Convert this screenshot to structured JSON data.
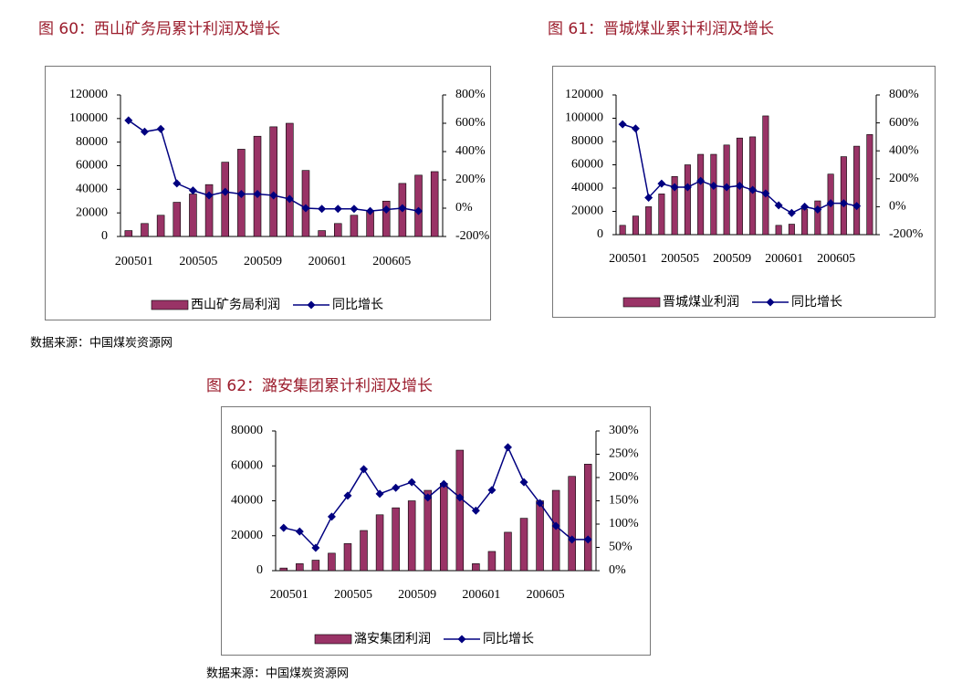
{
  "chart_data": [
    {
      "type": "bar",
      "title": "图 60：西山矿务局累计利润及增长",
      "source": "数据来源：中国煤炭资源网",
      "categories": [
        "200501",
        null,
        null,
        null,
        "200505",
        null,
        null,
        null,
        "200509",
        null,
        null,
        null,
        "200601",
        null,
        null,
        null,
        "200605",
        null,
        null,
        null
      ],
      "series": [
        {
          "name": "西山矿务局利润",
          "type": "bar",
          "color": "#993366",
          "values": [
            5000,
            11000,
            18000,
            29000,
            36000,
            44000,
            63000,
            74000,
            85000,
            93000,
            96000,
            56000,
            5000,
            11000,
            18000,
            22000,
            30000,
            45000,
            52000,
            55000
          ]
        },
        {
          "name": "同比增长",
          "type": "line",
          "axis": "y2",
          "color": "#000080",
          "values": [
            620,
            540,
            560,
            175,
            125,
            90,
            115,
            100,
            100,
            90,
            65,
            0,
            -5,
            -5,
            -5,
            -20,
            -10,
            0,
            -20,
            null
          ]
        }
      ],
      "ylim": [
        0,
        120000
      ],
      "yticks": [
        0,
        20000,
        40000,
        60000,
        80000,
        100000,
        120000
      ],
      "y2lim": [
        -200,
        800
      ],
      "y2ticks": [
        {
          "value": -200,
          "label": "-200%"
        },
        {
          "value": 0,
          "label": "0%"
        },
        {
          "value": 200,
          "label": "200%"
        },
        {
          "value": 400,
          "label": "400%"
        },
        {
          "value": 600,
          "label": "600%"
        },
        {
          "value": 800,
          "label": "800%"
        }
      ],
      "legend": "bottom",
      "grid": false
    },
    {
      "type": "bar",
      "title": "图 61：晋城煤业累计利润及增长",
      "categories": [
        "200501",
        null,
        null,
        null,
        "200505",
        null,
        null,
        null,
        "200509",
        null,
        null,
        null,
        "200601",
        null,
        null,
        null,
        "200605",
        null,
        null,
        null
      ],
      "series": [
        {
          "name": "晋城煤业利润",
          "type": "bar",
          "color": "#993366",
          "values": [
            8000,
            16000,
            24000,
            35000,
            50000,
            60000,
            69000,
            69000,
            77000,
            83000,
            84000,
            102000,
            8000,
            9000,
            22000,
            29000,
            52000,
            67000,
            76000,
            86000
          ]
        },
        {
          "name": "同比增长",
          "type": "line",
          "axis": "y2",
          "color": "#000080",
          "values": [
            590,
            560,
            65,
            165,
            140,
            140,
            185,
            150,
            140,
            150,
            120,
            95,
            10,
            -45,
            0,
            -20,
            25,
            25,
            5,
            null
          ]
        }
      ],
      "ylim": [
        0,
        120000
      ],
      "yticks": [
        0,
        20000,
        40000,
        60000,
        80000,
        100000,
        120000
      ],
      "y2lim": [
        -200,
        800
      ],
      "y2ticks": [
        {
          "value": -200,
          "label": "-200%"
        },
        {
          "value": 0,
          "label": "0%"
        },
        {
          "value": 200,
          "label": "200%"
        },
        {
          "value": 400,
          "label": "400%"
        },
        {
          "value": 600,
          "label": "600%"
        },
        {
          "value": 800,
          "label": "800%"
        }
      ],
      "legend": "bottom",
      "grid": false
    },
    {
      "type": "bar",
      "title": "图 62：潞安集团累计利润及增长",
      "source": "数据来源：中国煤炭资源网",
      "categories": [
        "200501",
        null,
        null,
        null,
        "200505",
        null,
        null,
        null,
        "200509",
        null,
        null,
        null,
        "200601",
        null,
        null,
        null,
        "200605",
        null,
        null,
        null
      ],
      "series": [
        {
          "name": "潞安集团利润",
          "type": "bar",
          "color": "#993366",
          "values": [
            1500,
            4000,
            6000,
            10000,
            15500,
            23000,
            32000,
            36000,
            40000,
            46000,
            50000,
            69000,
            4000,
            11000,
            22000,
            30000,
            40000,
            46000,
            54000,
            61000
          ]
        },
        {
          "name": "同比增长",
          "type": "line",
          "axis": "y2",
          "color": "#000080",
          "values": [
            92,
            84,
            49,
            116,
            161,
            218,
            165,
            178,
            190,
            157,
            186,
            157,
            129,
            173,
            265,
            190,
            145,
            96,
            67,
            67
          ]
        }
      ],
      "ylim": [
        0,
        80000
      ],
      "yticks": [
        0,
        20000,
        40000,
        60000,
        80000
      ],
      "y2lim": [
        0,
        300
      ],
      "y2ticks": [
        {
          "value": 0,
          "label": "0%"
        },
        {
          "value": 50,
          "label": "50%"
        },
        {
          "value": 100,
          "label": "100%"
        },
        {
          "value": 150,
          "label": "150%"
        },
        {
          "value": 200,
          "label": "200%"
        },
        {
          "value": 250,
          "label": "250%"
        },
        {
          "value": 300,
          "label": "300%"
        }
      ],
      "legend": "bottom",
      "grid": false
    }
  ]
}
